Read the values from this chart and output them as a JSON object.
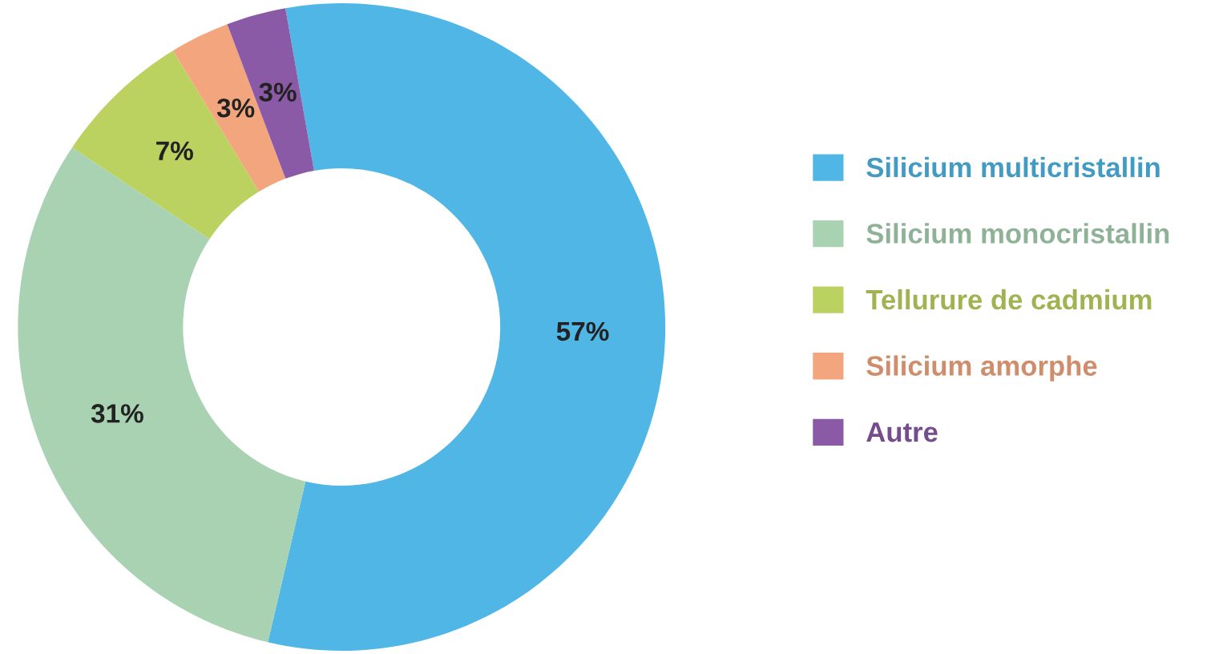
{
  "chart_data": {
    "type": "donut",
    "categories": [
      "Silicium multicristallin",
      "Silicium monocristallin",
      "Tellurure de cadmium",
      "Silicium amorphe",
      "Autre"
    ],
    "values": [
      57,
      31,
      7,
      3,
      3
    ],
    "colors": [
      "#4fb6e6",
      "#a8d2b2",
      "#bcd260",
      "#f3a67e",
      "#8a5aa6"
    ],
    "value_labels": [
      "57%",
      "31%",
      "7%",
      "3%",
      "3%"
    ],
    "legend": "right"
  }
}
